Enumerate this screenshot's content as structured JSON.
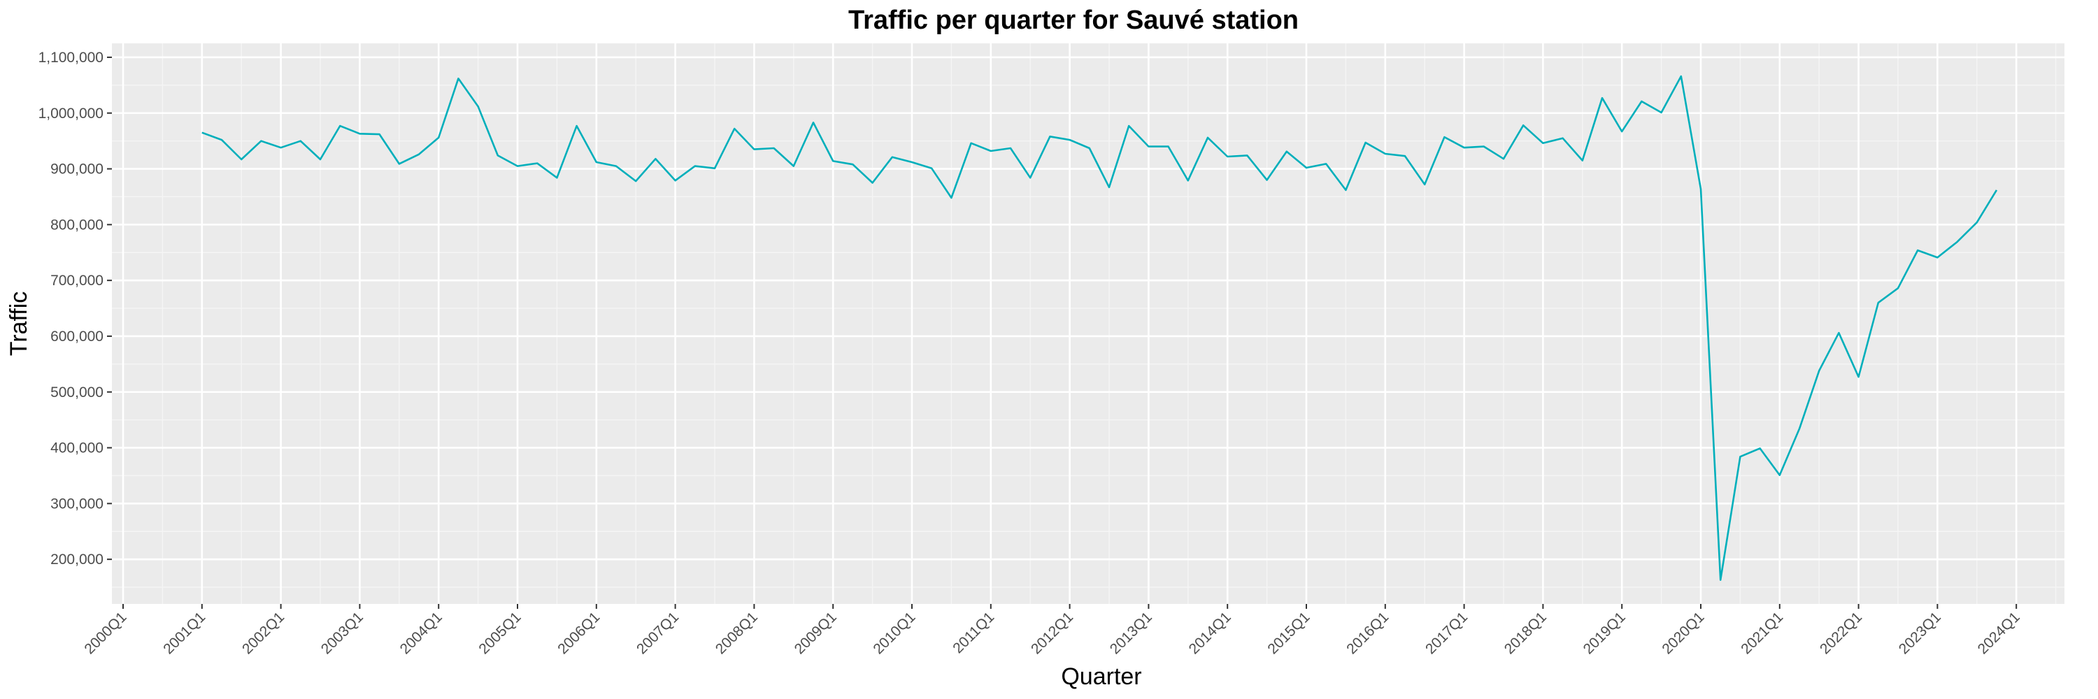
{
  "chart_data": {
    "type": "line",
    "title": "Traffic per quarter for Sauvé station",
    "xlabel": "Quarter",
    "ylabel": "Traffic",
    "x_tick_labels": [
      "2000Q1",
      "2001Q1",
      "2002Q1",
      "2003Q1",
      "2004Q1",
      "2005Q1",
      "2006Q1",
      "2007Q1",
      "2008Q1",
      "2009Q1",
      "2010Q1",
      "2011Q1",
      "2012Q1",
      "2013Q1",
      "2014Q1",
      "2015Q1",
      "2016Q1",
      "2017Q1",
      "2018Q1",
      "2019Q1",
      "2020Q1",
      "2021Q1",
      "2022Q1",
      "2023Q1",
      "2024Q1"
    ],
    "y_ticks": [
      200000,
      300000,
      400000,
      500000,
      600000,
      700000,
      800000,
      900000,
      1000000,
      1100000
    ],
    "y_tick_labels": [
      "200,000",
      "300,000",
      "400,000",
      "500,000",
      "600,000",
      "700,000",
      "800,000",
      "900,000",
      "1,000,000",
      "1,100,000"
    ],
    "x_range": [
      "2000Q1",
      "2024Q4"
    ],
    "ylim": [
      120000,
      1125000
    ],
    "grid": true,
    "panel_background": "#EBEBEB",
    "series": [
      {
        "color": "#00AFBB",
        "x": [
          "2001Q1",
          "2001Q2",
          "2001Q3",
          "2001Q4",
          "2002Q1",
          "2002Q2",
          "2002Q3",
          "2002Q4",
          "2003Q1",
          "2003Q2",
          "2003Q3",
          "2003Q4",
          "2004Q1",
          "2004Q2",
          "2004Q3",
          "2004Q4",
          "2005Q1",
          "2005Q2",
          "2005Q3",
          "2005Q4",
          "2006Q1",
          "2006Q2",
          "2006Q3",
          "2006Q4",
          "2007Q1",
          "2007Q2",
          "2007Q3",
          "2007Q4",
          "2008Q1",
          "2008Q2",
          "2008Q3",
          "2008Q4",
          "2009Q1",
          "2009Q2",
          "2009Q3",
          "2009Q4",
          "2010Q1",
          "2010Q2",
          "2010Q3",
          "2010Q4",
          "2011Q1",
          "2011Q2",
          "2011Q3",
          "2011Q4",
          "2012Q1",
          "2012Q2",
          "2012Q3",
          "2012Q4",
          "2013Q1",
          "2013Q2",
          "2013Q3",
          "2013Q4",
          "2014Q1",
          "2014Q2",
          "2014Q3",
          "2014Q4",
          "2015Q1",
          "2015Q2",
          "2015Q3",
          "2015Q4",
          "2016Q1",
          "2016Q2",
          "2016Q3",
          "2016Q4",
          "2017Q1",
          "2017Q2",
          "2017Q3",
          "2017Q4",
          "2018Q1",
          "2018Q2",
          "2018Q3",
          "2018Q4",
          "2019Q1",
          "2019Q2",
          "2019Q3",
          "2019Q4",
          "2020Q1",
          "2020Q2",
          "2020Q3",
          "2020Q4",
          "2021Q1",
          "2021Q2",
          "2021Q3",
          "2021Q4",
          "2022Q1",
          "2022Q2",
          "2022Q3",
          "2022Q4",
          "2023Q1",
          "2023Q2",
          "2023Q3",
          "2023Q4"
        ],
        "values": [
          965000,
          952000,
          917000,
          950000,
          938000,
          950000,
          917000,
          977000,
          963000,
          962000,
          909000,
          926000,
          956000,
          1062000,
          1012000,
          924000,
          905000,
          910000,
          884000,
          977000,
          912000,
          905000,
          878000,
          918000,
          879000,
          905000,
          901000,
          972000,
          935000,
          937000,
          905000,
          983000,
          914000,
          908000,
          875000,
          921000,
          912000,
          901000,
          848000,
          946000,
          932000,
          937000,
          884000,
          958000,
          952000,
          937000,
          867000,
          977000,
          940000,
          940000,
          879000,
          956000,
          922000,
          924000,
          880000,
          931000,
          902000,
          909000,
          862000,
          947000,
          927000,
          923000,
          872000,
          957000,
          938000,
          940000,
          918000,
          978000,
          946000,
          955000,
          915000,
          1027000,
          967000,
          1021000,
          1001000,
          1066000,
          864000,
          163000,
          384000,
          399000,
          351000,
          434000,
          538000,
          606000,
          527000,
          660000,
          686000,
          754000,
          741000,
          769000,
          804000,
          862000
        ]
      }
    ]
  }
}
